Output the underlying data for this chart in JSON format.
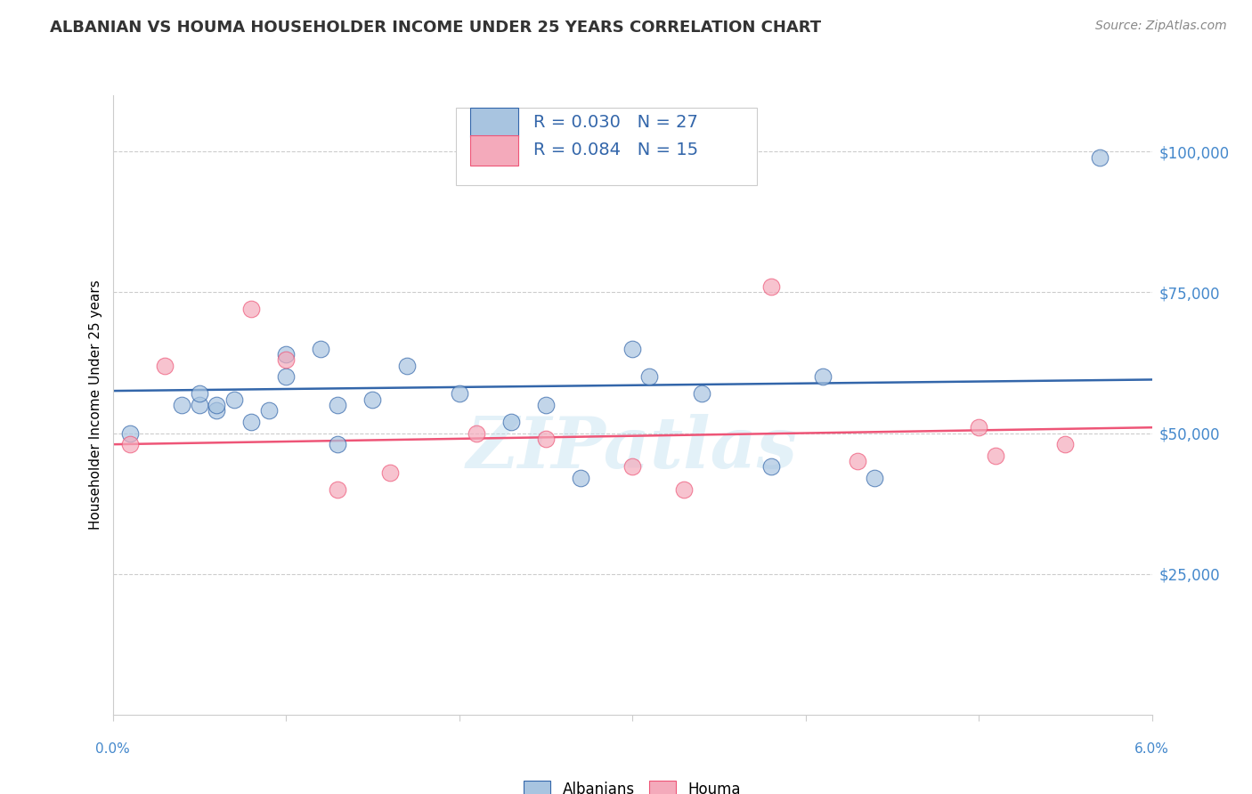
{
  "title": "ALBANIAN VS HOUMA HOUSEHOLDER INCOME UNDER 25 YEARS CORRELATION CHART",
  "source": "Source: ZipAtlas.com",
  "ylabel": "Householder Income Under 25 years",
  "watermark": "ZIPatlas",
  "legend_labels": [
    "Albanians",
    "Houma"
  ],
  "albanian_R": "0.030",
  "albanian_N": "27",
  "houma_R": "0.084",
  "houma_N": "15",
  "blue_color": "#A8C4E0",
  "pink_color": "#F4AABB",
  "line_blue": "#3366AA",
  "line_pink": "#EE5577",
  "label_blue": "#3366AA",
  "ytick_color": "#4488CC",
  "xtick_color": "#4488CC",
  "ytick_labels": [
    "$100,000",
    "$75,000",
    "$50,000",
    "$25,000"
  ],
  "ytick_values": [
    100000,
    75000,
    50000,
    25000
  ],
  "albanian_x": [
    0.001,
    0.004,
    0.005,
    0.005,
    0.006,
    0.006,
    0.007,
    0.008,
    0.009,
    0.01,
    0.01,
    0.012,
    0.013,
    0.013,
    0.015,
    0.017,
    0.02,
    0.023,
    0.025,
    0.027,
    0.03,
    0.031,
    0.034,
    0.038,
    0.041,
    0.044,
    0.057
  ],
  "albanian_y": [
    50000,
    55000,
    55000,
    57000,
    54000,
    55000,
    56000,
    52000,
    54000,
    60000,
    64000,
    65000,
    55000,
    48000,
    56000,
    62000,
    57000,
    52000,
    55000,
    42000,
    65000,
    60000,
    57000,
    44000,
    60000,
    42000,
    99000
  ],
  "houma_x": [
    0.001,
    0.003,
    0.008,
    0.01,
    0.013,
    0.016,
    0.021,
    0.025,
    0.03,
    0.033,
    0.038,
    0.043,
    0.05,
    0.051,
    0.055
  ],
  "houma_y": [
    48000,
    62000,
    72000,
    63000,
    40000,
    43000,
    50000,
    49000,
    44000,
    40000,
    76000,
    45000,
    51000,
    46000,
    48000
  ],
  "albanian_trendline_x": [
    0.0,
    0.06
  ],
  "albanian_trendline_y": [
    57500,
    59500
  ],
  "houma_trendline_x": [
    0.0,
    0.06
  ],
  "houma_trendline_y": [
    48000,
    51000
  ],
  "xmin": 0.0,
  "xmax": 0.06,
  "ymin": 0,
  "ymax": 110000,
  "background_color": "#FFFFFF",
  "grid_color": "#CCCCCC",
  "spine_color": "#CCCCCC",
  "marker_size": 180,
  "marker_alpha": 0.7
}
